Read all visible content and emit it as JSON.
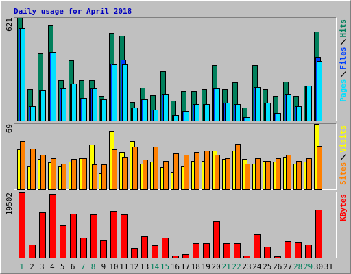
{
  "chart_data": [
    {
      "type": "bar",
      "title": "Daily usage for April 2018",
      "ylim": [
        0,
        621
      ],
      "yticks": [
        621
      ],
      "series": [
        {
          "name": "Hits",
          "color": "#00805c",
          "values": [
            621,
            189,
            407,
            575,
            243,
            365,
            243,
            243,
            151,
            529,
            512,
            113,
            197,
            155,
            298,
            118,
            180,
            180,
            189,
            336,
            189,
            231,
            80,
            336,
            189,
            147,
            235,
            151,
            210,
            537,
            0
          ]
        },
        {
          "name": "Files",
          "color": "#0040ff",
          "values": [
            558,
            88,
            181,
            415,
            193,
            222,
            138,
            193,
            130,
            344,
            369,
            80,
            130,
            67,
            160,
            34,
            59,
            101,
            101,
            193,
            109,
            101,
            21,
            201,
            109,
            46,
            160,
            88,
            210,
            386,
            0
          ]
        },
        {
          "name": "Pages",
          "color": "#00e0ff",
          "values": [
            558,
            88,
            181,
            415,
            193,
            222,
            138,
            193,
            130,
            340,
            340,
            80,
            130,
            67,
            160,
            34,
            59,
            101,
            101,
            193,
            109,
            101,
            21,
            201,
            109,
            46,
            160,
            88,
            210,
            360,
            0
          ]
        }
      ]
    },
    {
      "type": "bar",
      "ylim": [
        0,
        69
      ],
      "yticks": [
        69
      ],
      "series": [
        {
          "name": "Visits",
          "color": "#ffff00",
          "values": [
            42,
            24,
            32,
            28,
            24,
            29,
            33,
            47,
            17,
            62,
            39,
            51,
            27,
            29,
            23,
            18,
            24,
            30,
            30,
            41,
            32,
            41,
            32,
            27,
            30,
            29,
            34,
            27,
            29,
            69,
            0
          ]
        },
        {
          "name": "Sites",
          "color": "#ff8000",
          "values": [
            51,
            43,
            36,
            33,
            27,
            32,
            33,
            26,
            26,
            42,
            34,
            45,
            31,
            45,
            30,
            38,
            36,
            39,
            41,
            36,
            33,
            48,
            27,
            33,
            30,
            33,
            36,
            30,
            33,
            46,
            0
          ]
        }
      ]
    },
    {
      "type": "bar",
      "ylim": [
        0,
        19502
      ],
      "yticks": [
        19502
      ],
      "categories": [
        "1",
        "2",
        "3",
        "4",
        "5",
        "6",
        "7",
        "8",
        "9",
        "10",
        "11",
        "12",
        "13",
        "14",
        "15",
        "16",
        "17",
        "18",
        "19",
        "20",
        "21",
        "22",
        "23",
        "24",
        "25",
        "26",
        "27",
        "28",
        "29",
        "30",
        "31"
      ],
      "category_colors": [
        "#00805c",
        "#000000",
        "#000000",
        "#000000",
        "#000000",
        "#000000",
        "#00805c",
        "#00805c",
        "#000000",
        "#000000",
        "#000000",
        "#000000",
        "#000000",
        "#00805c",
        "#00805c",
        "#000000",
        "#000000",
        "#000000",
        "#000000",
        "#000000",
        "#00805c",
        "#00805c",
        "#000000",
        "#000000",
        "#000000",
        "#000000",
        "#000000",
        "#00805c",
        "#00805c",
        "#000000",
        "#000000"
      ],
      "series": [
        {
          "name": "KBytes",
          "color": "#ff0000",
          "values": [
            19502,
            3850,
            13500,
            19100,
            9630,
            13060,
            6000,
            12850,
            5140,
            13900,
            12850,
            2780,
            6420,
            3640,
            6000,
            640,
            1070,
            4280,
            4280,
            10900,
            4280,
            4280,
            640,
            7060,
            3210,
            430,
            4920,
            4500,
            3850,
            14350,
            0
          ]
        }
      ]
    }
  ]
}
